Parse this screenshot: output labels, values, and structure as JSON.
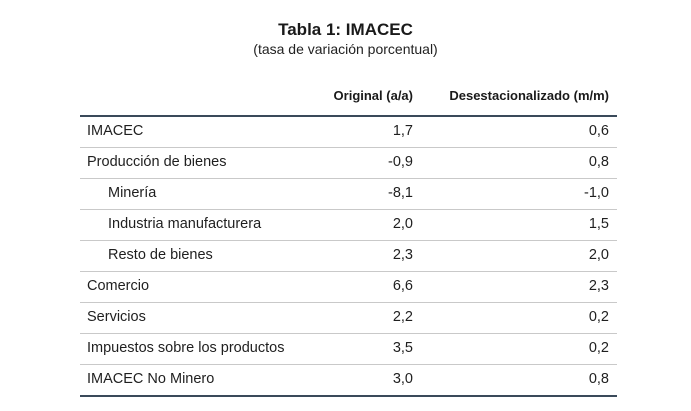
{
  "table": {
    "title": "Tabla 1:  IMACEC",
    "subtitle": "(tasa de variación porcentual)",
    "headers": [
      "",
      "Original (a/a)",
      "Desestacionalizado (m/m)"
    ],
    "rows": [
      {
        "label": "IMACEC",
        "original": "1,7",
        "desest": "0,6"
      },
      {
        "label": "Producción de bienes",
        "original": "-0,9",
        "desest": "0,8"
      },
      {
        "label": "Minería",
        "original": "-8,1",
        "desest": "-1,0"
      },
      {
        "label": "Industria manufacturera",
        "original": "2,0",
        "desest": "1,5"
      },
      {
        "label": "Resto de bienes",
        "original": "2,3",
        "desest": "2,0"
      },
      {
        "label": "Comercio",
        "original": "6,6",
        "desest": "2,3"
      },
      {
        "label": "Servicios",
        "original": "2,2",
        "desest": "0,2"
      },
      {
        "label": "Impuestos sobre los productos",
        "original": "3,5",
        "desest": "0,2"
      },
      {
        "label": "IMACEC No Minero",
        "original": "3,0",
        "desest": "0,8"
      }
    ]
  }
}
